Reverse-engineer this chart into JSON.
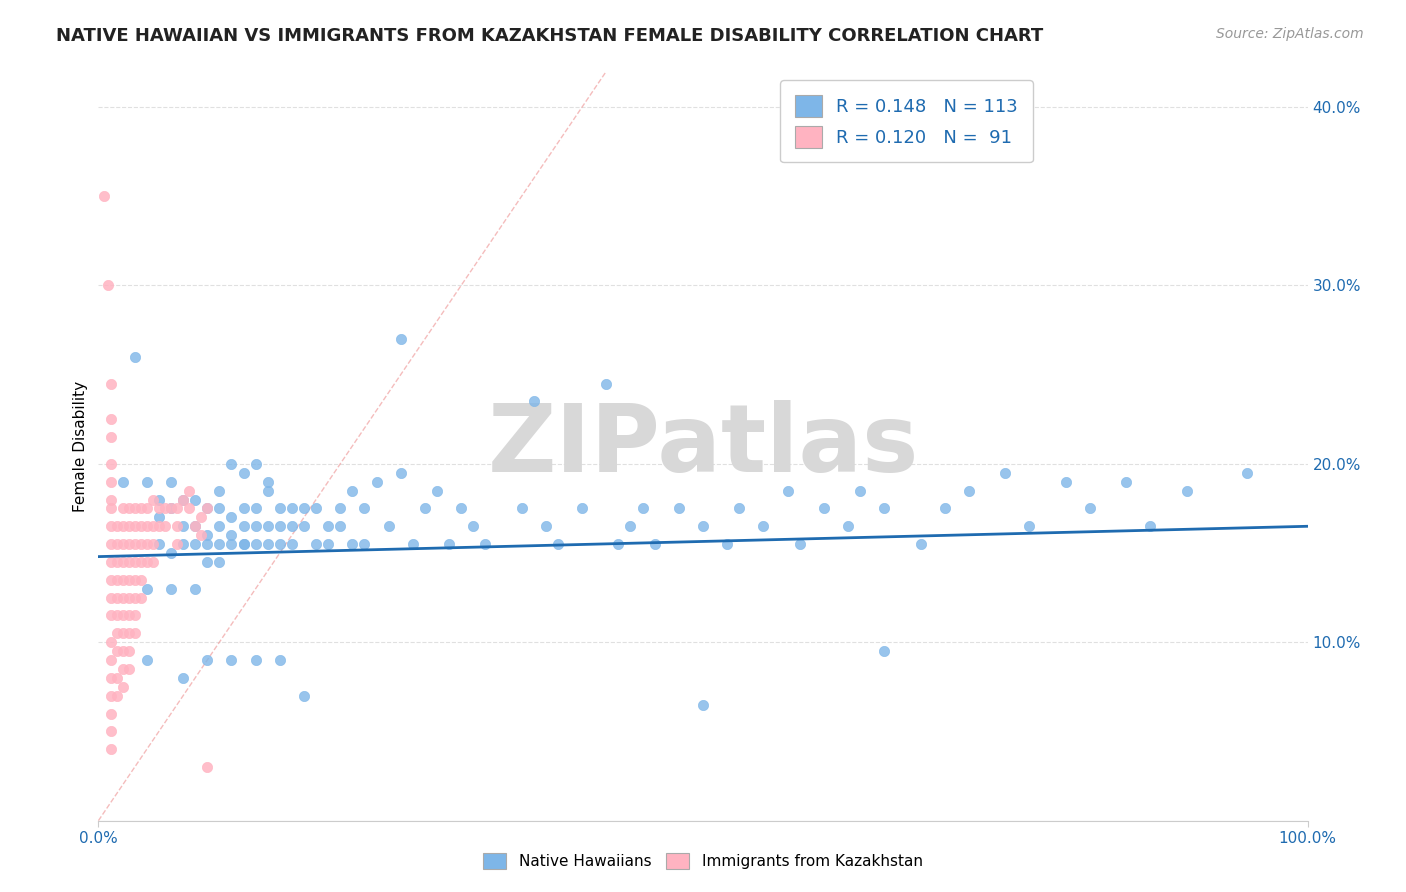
{
  "title": "NATIVE HAWAIIAN VS IMMIGRANTS FROM KAZAKHSTAN FEMALE DISABILITY CORRELATION CHART",
  "source_text": "Source: ZipAtlas.com",
  "ylabel": "Female Disability",
  "xlim": [
    0.0,
    1.0
  ],
  "ylim": [
    0.0,
    0.42
  ],
  "y_tick_values": [
    0.1,
    0.2,
    0.3,
    0.4
  ],
  "y_tick_labels": [
    "10.0%",
    "20.0%",
    "30.0%",
    "40.0%"
  ],
  "color_blue": "#7EB6E8",
  "color_pink": "#FFB3C1",
  "color_trend": "#1F6BB0",
  "color_diag_line": "#F0A0A0",
  "watermark_text": "ZIPatlas",
  "watermark_color": "#D8D8D8",
  "blue_scatter": [
    [
      0.02,
      0.19
    ],
    [
      0.03,
      0.26
    ],
    [
      0.04,
      0.19
    ],
    [
      0.04,
      0.09
    ],
    [
      0.04,
      0.13
    ],
    [
      0.05,
      0.18
    ],
    [
      0.05,
      0.17
    ],
    [
      0.05,
      0.155
    ],
    [
      0.06,
      0.175
    ],
    [
      0.06,
      0.15
    ],
    [
      0.06,
      0.13
    ],
    [
      0.06,
      0.19
    ],
    [
      0.07,
      0.18
    ],
    [
      0.07,
      0.155
    ],
    [
      0.07,
      0.165
    ],
    [
      0.07,
      0.08
    ],
    [
      0.08,
      0.155
    ],
    [
      0.08,
      0.165
    ],
    [
      0.08,
      0.18
    ],
    [
      0.08,
      0.13
    ],
    [
      0.09,
      0.16
    ],
    [
      0.09,
      0.155
    ],
    [
      0.09,
      0.175
    ],
    [
      0.09,
      0.145
    ],
    [
      0.09,
      0.09
    ],
    [
      0.1,
      0.155
    ],
    [
      0.1,
      0.165
    ],
    [
      0.1,
      0.175
    ],
    [
      0.1,
      0.185
    ],
    [
      0.1,
      0.145
    ],
    [
      0.11,
      0.16
    ],
    [
      0.11,
      0.155
    ],
    [
      0.11,
      0.17
    ],
    [
      0.11,
      0.09
    ],
    [
      0.11,
      0.2
    ],
    [
      0.12,
      0.155
    ],
    [
      0.12,
      0.165
    ],
    [
      0.12,
      0.175
    ],
    [
      0.12,
      0.155
    ],
    [
      0.12,
      0.195
    ],
    [
      0.13,
      0.2
    ],
    [
      0.13,
      0.165
    ],
    [
      0.13,
      0.175
    ],
    [
      0.13,
      0.155
    ],
    [
      0.13,
      0.09
    ],
    [
      0.14,
      0.185
    ],
    [
      0.14,
      0.155
    ],
    [
      0.14,
      0.165
    ],
    [
      0.14,
      0.19
    ],
    [
      0.15,
      0.155
    ],
    [
      0.15,
      0.175
    ],
    [
      0.15,
      0.165
    ],
    [
      0.15,
      0.09
    ],
    [
      0.16,
      0.175
    ],
    [
      0.16,
      0.155
    ],
    [
      0.16,
      0.165
    ],
    [
      0.17,
      0.07
    ],
    [
      0.17,
      0.175
    ],
    [
      0.17,
      0.165
    ],
    [
      0.18,
      0.155
    ],
    [
      0.18,
      0.175
    ],
    [
      0.19,
      0.165
    ],
    [
      0.19,
      0.155
    ],
    [
      0.2,
      0.175
    ],
    [
      0.2,
      0.165
    ],
    [
      0.21,
      0.155
    ],
    [
      0.21,
      0.185
    ],
    [
      0.22,
      0.175
    ],
    [
      0.22,
      0.155
    ],
    [
      0.23,
      0.19
    ],
    [
      0.24,
      0.165
    ],
    [
      0.25,
      0.27
    ],
    [
      0.25,
      0.195
    ],
    [
      0.26,
      0.155
    ],
    [
      0.27,
      0.175
    ],
    [
      0.28,
      0.185
    ],
    [
      0.29,
      0.155
    ],
    [
      0.3,
      0.175
    ],
    [
      0.31,
      0.165
    ],
    [
      0.32,
      0.155
    ],
    [
      0.35,
      0.175
    ],
    [
      0.36,
      0.235
    ],
    [
      0.37,
      0.165
    ],
    [
      0.38,
      0.155
    ],
    [
      0.4,
      0.175
    ],
    [
      0.42,
      0.245
    ],
    [
      0.43,
      0.155
    ],
    [
      0.44,
      0.165
    ],
    [
      0.45,
      0.175
    ],
    [
      0.46,
      0.155
    ],
    [
      0.48,
      0.175
    ],
    [
      0.5,
      0.165
    ],
    [
      0.5,
      0.065
    ],
    [
      0.52,
      0.155
    ],
    [
      0.53,
      0.175
    ],
    [
      0.55,
      0.165
    ],
    [
      0.57,
      0.185
    ],
    [
      0.58,
      0.155
    ],
    [
      0.6,
      0.175
    ],
    [
      0.62,
      0.165
    ],
    [
      0.63,
      0.185
    ],
    [
      0.65,
      0.175
    ],
    [
      0.65,
      0.095
    ],
    [
      0.68,
      0.155
    ],
    [
      0.7,
      0.175
    ],
    [
      0.72,
      0.185
    ],
    [
      0.75,
      0.195
    ],
    [
      0.77,
      0.165
    ],
    [
      0.8,
      0.19
    ],
    [
      0.82,
      0.175
    ],
    [
      0.85,
      0.19
    ],
    [
      0.87,
      0.165
    ],
    [
      0.9,
      0.185
    ],
    [
      0.95,
      0.195
    ]
  ],
  "pink_scatter": [
    [
      0.005,
      0.35
    ],
    [
      0.008,
      0.3
    ],
    [
      0.01,
      0.245
    ],
    [
      0.01,
      0.225
    ],
    [
      0.01,
      0.215
    ],
    [
      0.01,
      0.2
    ],
    [
      0.01,
      0.19
    ],
    [
      0.01,
      0.18
    ],
    [
      0.01,
      0.175
    ],
    [
      0.01,
      0.165
    ],
    [
      0.01,
      0.155
    ],
    [
      0.01,
      0.145
    ],
    [
      0.01,
      0.135
    ],
    [
      0.01,
      0.125
    ],
    [
      0.01,
      0.115
    ],
    [
      0.01,
      0.1
    ],
    [
      0.01,
      0.09
    ],
    [
      0.01,
      0.08
    ],
    [
      0.01,
      0.07
    ],
    [
      0.01,
      0.06
    ],
    [
      0.01,
      0.05
    ],
    [
      0.01,
      0.04
    ],
    [
      0.015,
      0.165
    ],
    [
      0.015,
      0.155
    ],
    [
      0.015,
      0.145
    ],
    [
      0.015,
      0.135
    ],
    [
      0.015,
      0.125
    ],
    [
      0.015,
      0.115
    ],
    [
      0.015,
      0.105
    ],
    [
      0.015,
      0.095
    ],
    [
      0.015,
      0.08
    ],
    [
      0.015,
      0.07
    ],
    [
      0.02,
      0.175
    ],
    [
      0.02,
      0.165
    ],
    [
      0.02,
      0.155
    ],
    [
      0.02,
      0.145
    ],
    [
      0.02,
      0.135
    ],
    [
      0.02,
      0.125
    ],
    [
      0.02,
      0.115
    ],
    [
      0.02,
      0.105
    ],
    [
      0.02,
      0.095
    ],
    [
      0.02,
      0.085
    ],
    [
      0.02,
      0.075
    ],
    [
      0.025,
      0.175
    ],
    [
      0.025,
      0.165
    ],
    [
      0.025,
      0.155
    ],
    [
      0.025,
      0.145
    ],
    [
      0.025,
      0.135
    ],
    [
      0.025,
      0.125
    ],
    [
      0.025,
      0.115
    ],
    [
      0.025,
      0.105
    ],
    [
      0.025,
      0.095
    ],
    [
      0.025,
      0.085
    ],
    [
      0.03,
      0.175
    ],
    [
      0.03,
      0.165
    ],
    [
      0.03,
      0.155
    ],
    [
      0.03,
      0.145
    ],
    [
      0.03,
      0.135
    ],
    [
      0.03,
      0.125
    ],
    [
      0.03,
      0.115
    ],
    [
      0.03,
      0.105
    ],
    [
      0.035,
      0.175
    ],
    [
      0.035,
      0.165
    ],
    [
      0.035,
      0.155
    ],
    [
      0.035,
      0.145
    ],
    [
      0.035,
      0.135
    ],
    [
      0.035,
      0.125
    ],
    [
      0.04,
      0.175
    ],
    [
      0.04,
      0.165
    ],
    [
      0.04,
      0.155
    ],
    [
      0.04,
      0.145
    ],
    [
      0.045,
      0.18
    ],
    [
      0.045,
      0.165
    ],
    [
      0.045,
      0.155
    ],
    [
      0.045,
      0.145
    ],
    [
      0.05,
      0.175
    ],
    [
      0.05,
      0.165
    ],
    [
      0.055,
      0.175
    ],
    [
      0.055,
      0.165
    ],
    [
      0.06,
      0.175
    ],
    [
      0.065,
      0.175
    ],
    [
      0.065,
      0.165
    ],
    [
      0.065,
      0.155
    ],
    [
      0.07,
      0.18
    ],
    [
      0.075,
      0.185
    ],
    [
      0.075,
      0.175
    ],
    [
      0.08,
      0.165
    ],
    [
      0.085,
      0.17
    ],
    [
      0.085,
      0.16
    ],
    [
      0.09,
      0.175
    ],
    [
      0.09,
      0.03
    ]
  ],
  "trend_x": [
    0.0,
    1.0
  ],
  "trend_y_start": 0.148,
  "trend_y_end": 0.165,
  "background_color": "#FFFFFF",
  "grid_color": "#E0E0E0",
  "title_fontsize": 13,
  "axis_label_fontsize": 11,
  "tick_fontsize": 11,
  "source_fontsize": 10
}
